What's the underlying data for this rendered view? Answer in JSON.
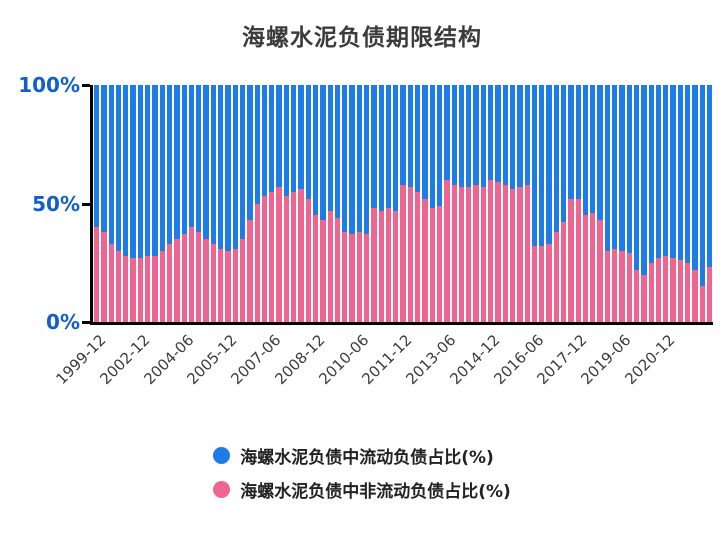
{
  "title": "海螺水泥负债期限结构",
  "colors": {
    "current_liability_blue": "#1e7ce8",
    "noncurrent_liability_pink": "#ee6590",
    "axis": "#000000",
    "y_tick_label": "#105fce",
    "x_tick_label": "#3c3c3c",
    "title_text": "#3c3c3c",
    "background": "#ffffff"
  },
  "chart_data": {
    "type": "bar",
    "stacked": true,
    "stack_total": 100,
    "unit": "%",
    "title": "海螺水泥负债期限结构",
    "xlabel": "",
    "ylabel": "",
    "ylim": [
      0,
      100
    ],
    "grid": false,
    "legend_position": "bottom",
    "yticks": [
      {
        "label": "0%",
        "value": 0
      },
      {
        "label": "50%",
        "value": 50
      },
      {
        "label": "100%",
        "value": 100
      }
    ],
    "x": [
      "1999-12",
      "2000-06",
      "2000-12",
      "2001-06",
      "2001-12",
      "2002-06",
      "2002-12",
      "2003-03",
      "2003-06",
      "2003-09",
      "2003-12",
      "2004-03",
      "2004-06",
      "2004-09",
      "2004-12",
      "2005-03",
      "2005-06",
      "2005-09",
      "2005-12",
      "2006-03",
      "2006-06",
      "2006-09",
      "2006-12",
      "2007-03",
      "2007-06",
      "2007-09",
      "2007-12",
      "2008-03",
      "2008-06",
      "2008-09",
      "2008-12",
      "2009-03",
      "2009-06",
      "2009-09",
      "2009-12",
      "2010-03",
      "2010-06",
      "2010-09",
      "2010-12",
      "2011-03",
      "2011-06",
      "2011-09",
      "2011-12",
      "2012-03",
      "2012-06",
      "2012-09",
      "2012-12",
      "2013-03",
      "2013-06",
      "2013-09",
      "2013-12",
      "2014-03",
      "2014-06",
      "2014-09",
      "2014-12",
      "2015-03",
      "2015-06",
      "2015-09",
      "2015-12",
      "2016-03",
      "2016-06",
      "2016-09",
      "2016-12",
      "2017-03",
      "2017-06",
      "2017-09",
      "2017-12",
      "2018-03",
      "2018-06",
      "2018-09",
      "2018-12",
      "2019-03",
      "2019-06",
      "2019-09",
      "2019-12",
      "2020-03",
      "2020-06",
      "2020-09",
      "2020-12",
      "2021-03",
      "2021-06",
      "2021-09",
      "2021-12",
      "2022-03",
      "2022-06"
    ],
    "x_tick_indices": [
      0,
      6,
      12,
      18,
      24,
      30,
      36,
      42,
      48,
      54,
      60,
      66,
      72,
      78
    ],
    "x_tick_labels": [
      "1999-12",
      "2002-12",
      "2004-06",
      "2005-12",
      "2007-06",
      "2008-12",
      "2010-06",
      "2011-12",
      "2013-06",
      "2014-12",
      "2016-06",
      "2017-12",
      "2019-06",
      "2020-12"
    ],
    "series": [
      {
        "name": "海螺水泥负债中流动负债占比(%)",
        "color": "#1e7ce8",
        "values": [
          60,
          62,
          67,
          70,
          72,
          73,
          73,
          72,
          72,
          70,
          67,
          65,
          63,
          60,
          62,
          65,
          67,
          69,
          70,
          69,
          65,
          57,
          50,
          47,
          45,
          43,
          47,
          45,
          44,
          48,
          55,
          57,
          53,
          56,
          62,
          63,
          62,
          63,
          52,
          53,
          52,
          53,
          42,
          43,
          45,
          48,
          52,
          51,
          40,
          42,
          43,
          43,
          42,
          43,
          40,
          41,
          42,
          44,
          43,
          42,
          68,
          68,
          67,
          62,
          58,
          48,
          48,
          55,
          54,
          57,
          70,
          69,
          70,
          71,
          78,
          80,
          75,
          73,
          72,
          73,
          74,
          75,
          78,
          85,
          77
        ]
      },
      {
        "name": "海螺水泥负债中非流动负债占比(%)",
        "color": "#ee6590",
        "values": [
          40,
          38,
          33,
          30,
          28,
          27,
          27,
          28,
          28,
          30,
          33,
          35,
          37,
          40,
          38,
          35,
          33,
          31,
          30,
          31,
          35,
          43,
          50,
          53,
          55,
          57,
          53,
          55,
          56,
          52,
          45,
          43,
          47,
          44,
          38,
          37,
          38,
          37,
          48,
          47,
          48,
          47,
          58,
          57,
          55,
          52,
          48,
          49,
          60,
          58,
          57,
          57,
          58,
          57,
          60,
          59,
          58,
          56,
          57,
          58,
          32,
          32,
          33,
          38,
          42,
          52,
          52,
          45,
          46,
          43,
          30,
          31,
          30,
          29,
          22,
          20,
          25,
          27,
          28,
          27,
          26,
          25,
          22,
          15,
          23
        ]
      }
    ]
  },
  "legend": {
    "items": [
      {
        "label": "海螺水泥负债中流动负债占比(%)",
        "color": "#1e7ce8"
      },
      {
        "label": "海螺水泥负债中非流动负债占比(%)",
        "color": "#ee6590"
      }
    ]
  }
}
